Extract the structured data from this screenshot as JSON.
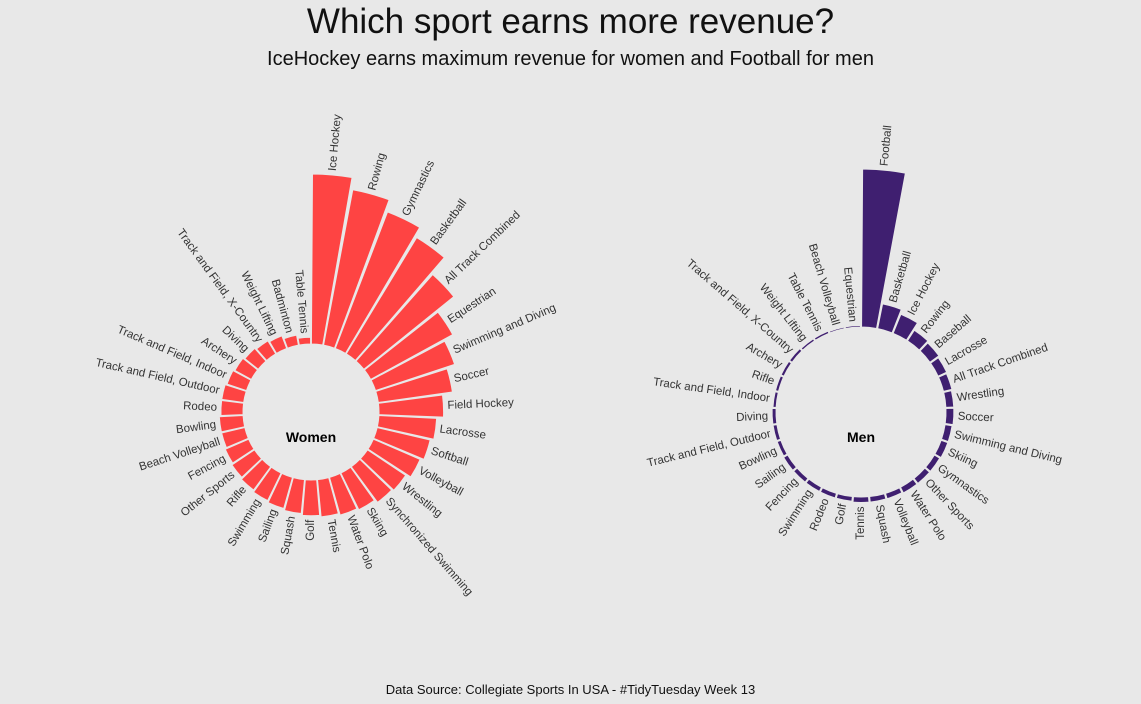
{
  "title": "Which sport earns more revenue?",
  "subtitle": "IceHockey earns maximum revenue for women and Football for men",
  "caption": "Data Source: Collegiate Sports In USA - #TidyTuesday Week 13",
  "colors": {
    "background": "#e8e8e8",
    "women": "#fe4443",
    "men": "#3f1f70",
    "label": "#333333"
  },
  "chart_data": [
    {
      "type": "bar",
      "polar": true,
      "panel_label": "Women",
      "ylim": [
        0,
        100
      ],
      "categories": [
        "Ice Hockey",
        "Rowing",
        "Gymnastics",
        "Basketball",
        "All Track Combined",
        "Equestrian",
        "Swimming and Diving",
        "Soccer",
        "Field Hockey",
        "Lacrosse",
        "Softball",
        "Volleyball",
        "Wrestling",
        "Synchronized Swimming",
        "Skiing",
        "Water Polo",
        "Tennis",
        "Golf",
        "Squash",
        "Sailing",
        "Swimming",
        "Rifle",
        "Other Sports",
        "Fencing",
        "Beach Volleyball",
        "Bowling",
        "Rodeo",
        "Track and Field, Outdoor",
        "Track and Field, Indoor",
        "Archery",
        "Diving",
        "Track and Field, X-Country",
        "Weight Lifting",
        "Badminton",
        "Table Tennis"
      ],
      "values": [
        100,
        93,
        86,
        80,
        68,
        55,
        49,
        44,
        38,
        34,
        32,
        30,
        27,
        26,
        24,
        23,
        22,
        21,
        20,
        19,
        18,
        17,
        16,
        15,
        14,
        14,
        13,
        13,
        12,
        11,
        10,
        9,
        8,
        6,
        4
      ]
    },
    {
      "type": "bar",
      "polar": true,
      "panel_label": "Men",
      "ylim": [
        0,
        100
      ],
      "categories": [
        "Football",
        "Basketball",
        "Ice Hockey",
        "Rowing",
        "Baseball",
        "Lacrosse",
        "All Track Combined",
        "Wrestling",
        "Soccer",
        "Swimming and Diving",
        "Skiing",
        "Gymnastics",
        "Other Sports",
        "Water Polo",
        "Volleyball",
        "Squash",
        "Tennis",
        "Golf",
        "Rodeo",
        "Swimming",
        "Fencing",
        "Sailing",
        "Bowling",
        "Track and Field, Outdoor",
        "Diving",
        "Track and Field, Indoor",
        "Rifle",
        "Archery",
        "Track and Field, X-Country",
        "Weight Lifting",
        "Table Tennis",
        "Beach Volleyball",
        "Equestrian"
      ],
      "values": [
        100,
        16,
        13,
        8,
        7,
        6,
        5.5,
        5,
        5,
        4.5,
        4.5,
        4,
        4,
        4,
        3.5,
        3.5,
        3.5,
        3,
        3,
        3,
        3,
        3,
        2.5,
        2.5,
        2.5,
        2,
        2,
        2,
        2,
        1.5,
        1.5,
        1,
        1
      ]
    }
  ]
}
